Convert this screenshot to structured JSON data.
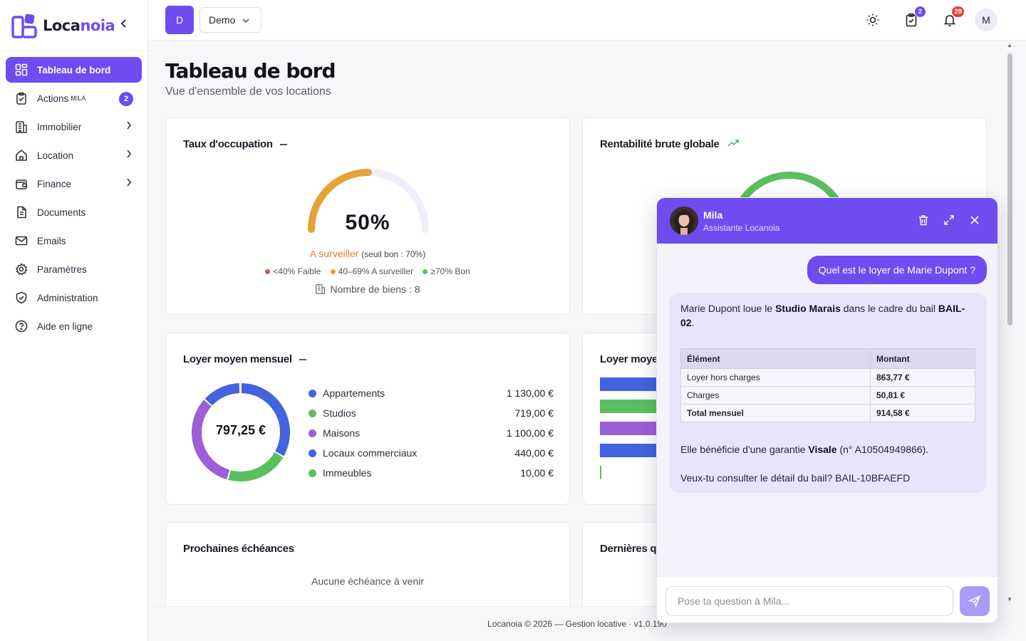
{
  "brand": {
    "name_prefix": "Loca",
    "name_suffix": "noia",
    "accent": "#6e4cf0"
  },
  "sidebar": {
    "items": [
      {
        "label": "Tableau de bord",
        "icon": "dashboard-icon",
        "active": true
      },
      {
        "label": "Actions",
        "sup": "MILA",
        "icon": "clipboard-check-icon",
        "badge": "2"
      },
      {
        "label": "Immobilier",
        "icon": "building-icon",
        "has_children": true
      },
      {
        "label": "Location",
        "icon": "home-icon",
        "has_children": true
      },
      {
        "label": "Finance",
        "icon": "wallet-icon",
        "has_children": true
      },
      {
        "label": "Documents",
        "icon": "document-icon"
      },
      {
        "label": "Emails",
        "icon": "mail-icon"
      },
      {
        "label": "Paramètres",
        "icon": "gear-icon"
      },
      {
        "label": "Administration",
        "icon": "shield-icon"
      },
      {
        "label": "Aide en ligne",
        "icon": "help-icon"
      }
    ]
  },
  "header": {
    "workspace_initial": "D",
    "workspace_name": "Demo",
    "tasks_badge": "2",
    "notifications_badge": "29",
    "user_initial": "M"
  },
  "page": {
    "title": "Tableau de bord",
    "subtitle": "Vue d'ensemble de vos locations"
  },
  "occupancy": {
    "title": "Taux d'occupation",
    "value": "50%",
    "fraction": 0.5,
    "status": "A surveiller",
    "threshold": "(seuil bon : 70%)",
    "legend": [
      {
        "label": "<40% Faible",
        "color": "#e2524a"
      },
      {
        "label": "40–69% A surveiller",
        "color": "#e79b2e"
      },
      {
        "label": "≥70% Bon",
        "color": "#5cbf5f"
      }
    ],
    "biens_label": "Nombre de biens : 8"
  },
  "rentabilite": {
    "title": "Rentabilité brute globale"
  },
  "loyer_moyen": {
    "title": "Loyer moyen mensuel",
    "center_value": "797,25 €",
    "items": [
      {
        "label": "Appartements",
        "value": "1 130,00 €",
        "color": "#4463de"
      },
      {
        "label": "Studios",
        "value": "719,00 €",
        "color": "#5cbf5f"
      },
      {
        "label": "Maisons",
        "value": "1 100,00 €",
        "color": "#9d5fd8"
      },
      {
        "label": "Locaux commerciaux",
        "value": "440,00 €",
        "color": "#4463de"
      },
      {
        "label": "Immeubles",
        "value": "10,00 €",
        "color": "#5cbf5f"
      }
    ]
  },
  "loyer_moyen_right": {
    "title": "Loyer moye"
  },
  "echeances": {
    "title": "Prochaines échéances",
    "empty": "Aucune échéance à venir"
  },
  "dernieres": {
    "title": "Dernières q"
  },
  "footer": {
    "text": "Locanoia © 2026 — Gestion locative · v1.0.190"
  },
  "chat": {
    "name": "Mila",
    "role": "Assistante Locanoia",
    "user_message": "Quel est le loyer de Marie Dupont ?",
    "bot_intro_1": "Marie Dupont loue le ",
    "bot_intro_bold": "Studio Marais",
    "bot_intro_2": " dans le cadre du bail ",
    "bot_intro_bail": "BAIL-02",
    "bot_intro_end": ".",
    "table_headers": [
      "Élément",
      "Montant"
    ],
    "table_rows": [
      {
        "label": "Loyer hors charges",
        "value": "863,77 €"
      },
      {
        "label": "Charges",
        "value": "50,81 €"
      },
      {
        "label": "Total mensuel",
        "value": "914,58 €"
      }
    ],
    "garantie_1": "Elle bénéficie d'une garantie ",
    "garantie_bold": "Visale",
    "garantie_2": " (n° A10504949866).",
    "question": "Veux-tu consulter le détail du bail? BAIL-10BFAEFD",
    "input_placeholder": "Pose ta question à Mila..."
  }
}
